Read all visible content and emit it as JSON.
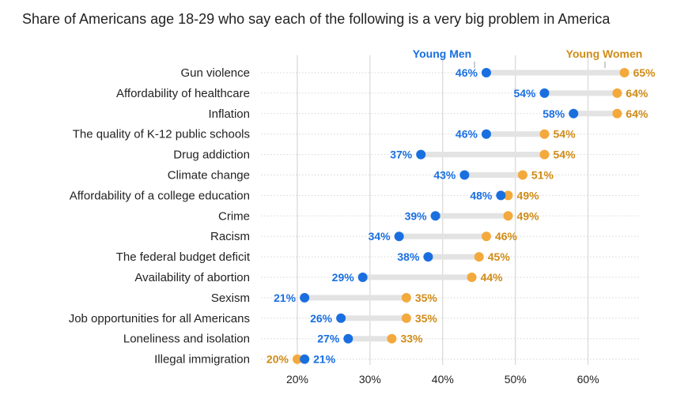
{
  "chart_data": {
    "type": "dumbbell",
    "title": "Share of Americans age 18-29 who say each of the following is a very big problem in America",
    "xlabel": "",
    "ylabel": "",
    "xlim": [
      15,
      67
    ],
    "xticks": [
      20,
      30,
      40,
      50,
      60
    ],
    "xtick_labels": [
      "20%",
      "30%",
      "40%",
      "50%",
      "60%"
    ],
    "grid": true,
    "legend_position": "top",
    "series": [
      {
        "name": "Young Men",
        "color": "#1a6fe0"
      },
      {
        "name": "Young Women",
        "color": "#f4a93c"
      }
    ],
    "categories": [
      "Gun violence",
      "Affordability of healthcare",
      "Inflation",
      "The quality of K-12 public schools",
      "Drug addiction",
      "Climate change",
      "Affordability of a college education",
      "Crime",
      "Racism",
      "The federal budget deficit",
      "Availability of abortion",
      "Sexism",
      "Job opportunities for all Americans",
      "Loneliness and isolation",
      "Illegal immigration"
    ],
    "men": [
      46,
      54,
      58,
      46,
      37,
      43,
      48,
      39,
      34,
      38,
      29,
      21,
      26,
      27,
      21
    ],
    "women": [
      65,
      64,
      64,
      54,
      54,
      51,
      49,
      49,
      46,
      45,
      44,
      35,
      35,
      33,
      20
    ]
  },
  "colors": {
    "men": "#1a6fe0",
    "women": "#f4a93c",
    "women_text": "#d08b17",
    "bar": "#e3e3e3",
    "grid": "#cfcfcf"
  }
}
